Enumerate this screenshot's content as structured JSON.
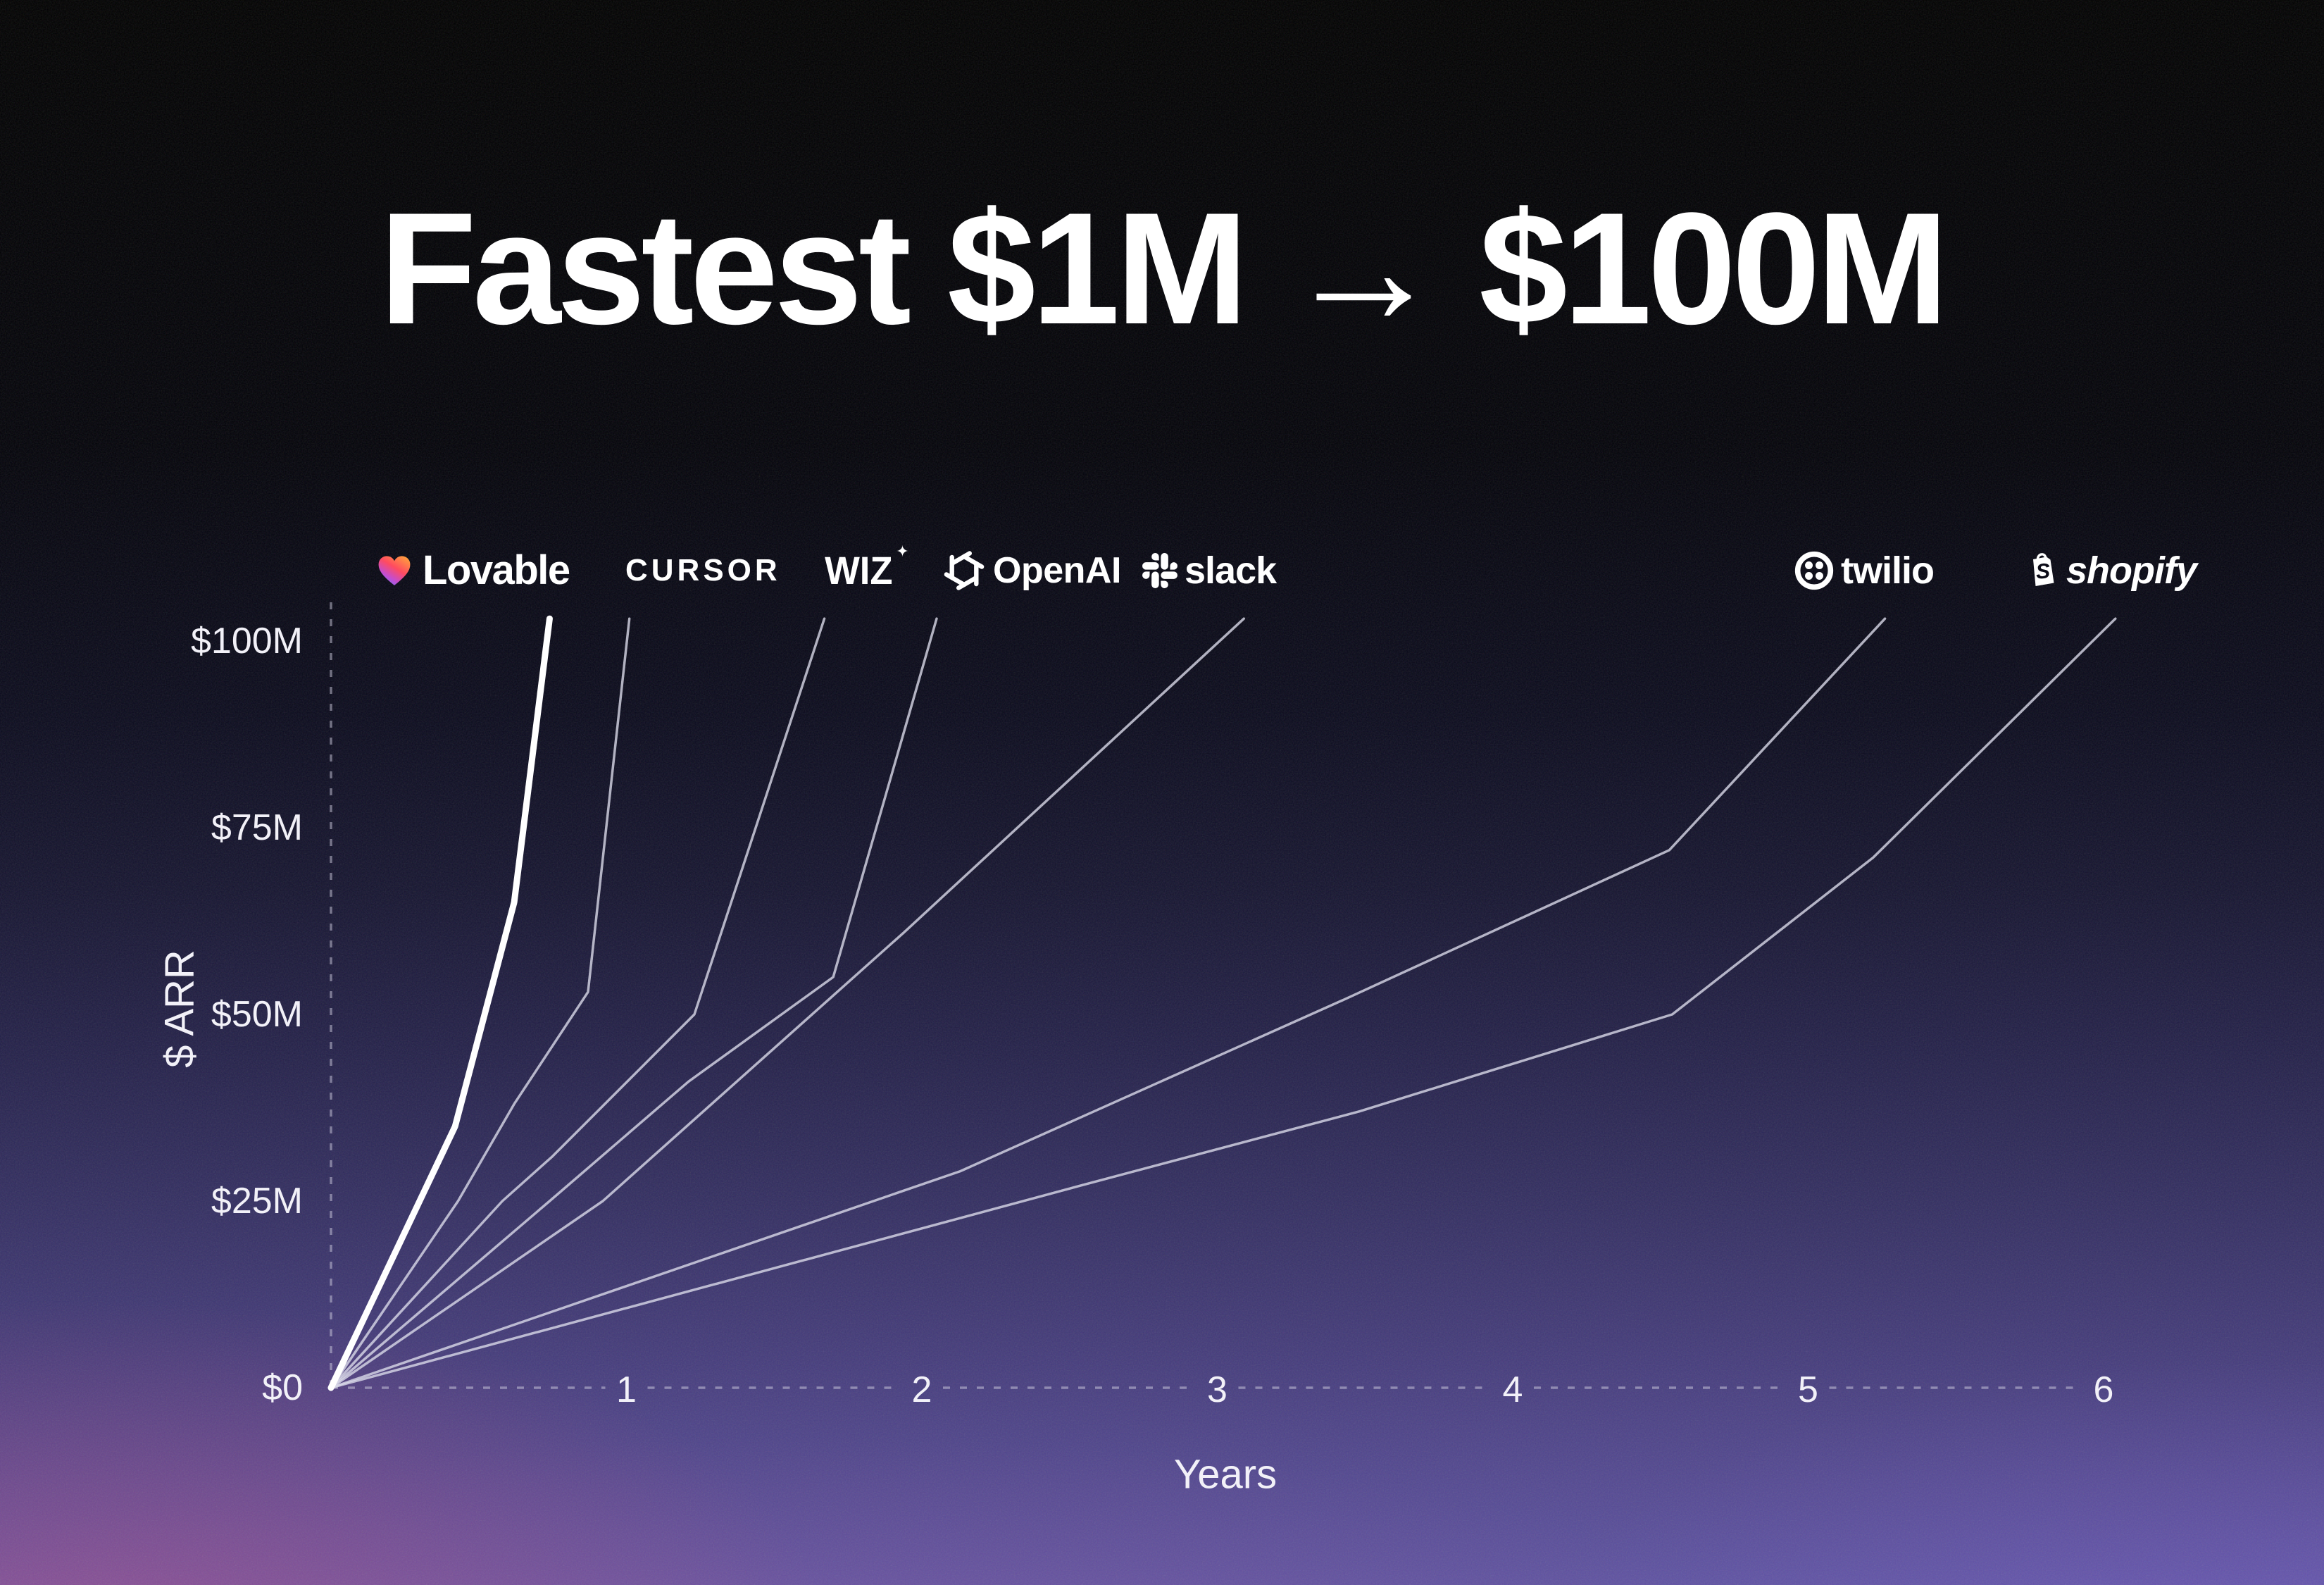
{
  "title": "Fastest $1M → $100M",
  "chart_data": {
    "type": "line",
    "title": "Fastest $1M → $100M",
    "xlabel": "Years",
    "ylabel": "$ ARR",
    "xlim": [
      0,
      6.6
    ],
    "ylim": [
      0,
      108
    ],
    "x_ticks": [
      1,
      2,
      3,
      4,
      5,
      6
    ],
    "y_ticks": [
      0,
      25,
      50,
      75,
      100
    ],
    "y_tick_labels": [
      "$0",
      "$25M",
      "$50M",
      "$75M",
      "$100M"
    ],
    "grid": "off, dashed x and y axis lines only",
    "legend": "company logos placed above each line endpoint",
    "series": [
      {
        "name": "Lovable",
        "years_to_100m": 0.75,
        "emphasis": true,
        "points": [
          [
            0,
            0
          ],
          [
            0.3,
            25
          ],
          [
            0.42,
            35
          ],
          [
            0.62,
            65
          ],
          [
            0.74,
            103
          ]
        ]
      },
      {
        "name": "Cursor",
        "years_to_100m": 1.0,
        "emphasis": false,
        "points": [
          [
            0,
            0
          ],
          [
            0.43,
            25
          ],
          [
            0.62,
            38
          ],
          [
            0.87,
            53
          ],
          [
            1.01,
            103
          ]
        ]
      },
      {
        "name": "Wiz",
        "years_to_100m": 1.7,
        "emphasis": false,
        "points": [
          [
            0,
            0
          ],
          [
            0.58,
            25
          ],
          [
            0.75,
            31
          ],
          [
            1.23,
            50
          ],
          [
            1.67,
            103
          ]
        ]
      },
      {
        "name": "OpenAI",
        "years_to_100m": 2.0,
        "emphasis": false,
        "points": [
          [
            0,
            0
          ],
          [
            0.74,
            25
          ],
          [
            1.21,
            41
          ],
          [
            1.7,
            55
          ],
          [
            2.05,
            103
          ]
        ]
      },
      {
        "name": "Slack",
        "years_to_100m": 3.0,
        "emphasis": false,
        "points": [
          [
            0,
            0
          ],
          [
            0.92,
            25
          ],
          [
            1.94,
            61
          ],
          [
            3.09,
            103
          ]
        ]
      },
      {
        "name": "Twilio",
        "years_to_100m": 5.25,
        "emphasis": false,
        "points": [
          [
            0,
            0
          ],
          [
            2.13,
            29
          ],
          [
            3.43,
            52
          ],
          [
            4.53,
            72
          ],
          [
            5.26,
            103
          ]
        ]
      },
      {
        "name": "Shopify",
        "years_to_100m": 6.0,
        "emphasis": false,
        "points": [
          [
            0,
            0
          ],
          [
            2.53,
            27
          ],
          [
            3.48,
            37
          ],
          [
            4.54,
            50
          ],
          [
            5.22,
            71
          ],
          [
            6.04,
            103
          ]
        ]
      }
    ]
  },
  "axes": {
    "x_title": "Years",
    "y_title": "$ ARR"
  },
  "logos": [
    {
      "id": "lovable",
      "label": "Lovable"
    },
    {
      "id": "cursor",
      "label": "CURSOR"
    },
    {
      "id": "wiz",
      "label": "WIZ"
    },
    {
      "id": "openai",
      "label": "OpenAI"
    },
    {
      "id": "slack",
      "label": "slack"
    },
    {
      "id": "twilio",
      "label": "twilio"
    },
    {
      "id": "shopify",
      "label": "shopify"
    }
  ],
  "icons": {
    "wiz_star": "✦"
  },
  "colors": {
    "background_top": "#000000",
    "background_mid": "#15142f",
    "background_bottom": "#5d52a0",
    "bottom_left_glow": "#c94c82",
    "bottom_right_glow": "#7e60d2",
    "line_emphasis": "#ffffff",
    "line_default": "#d9d9e8",
    "axis_dash": "#cfcde0",
    "text": "#f2f1f8",
    "lovable_heart_gradient": [
      "#ffa03d",
      "#ff4b60",
      "#c44dd0",
      "#6f7bff"
    ]
  }
}
